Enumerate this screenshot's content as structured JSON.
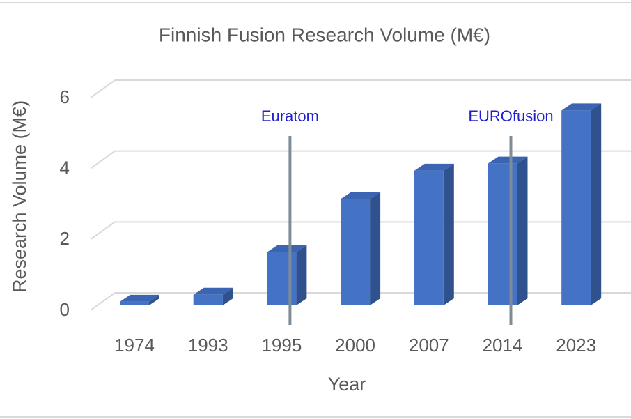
{
  "chart_data": {
    "type": "bar",
    "title": "Finnish Fusion Research Volume (M€)",
    "x_label": "Year",
    "y_label": "Research Volume (M€)",
    "categories": [
      "1974",
      "1993",
      "1995",
      "2000",
      "2007",
      "2014",
      "2023"
    ],
    "values": [
      0.1,
      0.3,
      1.5,
      3.0,
      3.8,
      4.0,
      5.5
    ],
    "color": "#4472c4",
    "ylim": [
      0,
      6
    ],
    "yticks": [
      0,
      2,
      4,
      6
    ],
    "grid": true,
    "annotations": [
      {
        "text": "Euratom",
        "category": "1995"
      },
      {
        "text": "EUROfusion",
        "category": "2014"
      }
    ]
  }
}
